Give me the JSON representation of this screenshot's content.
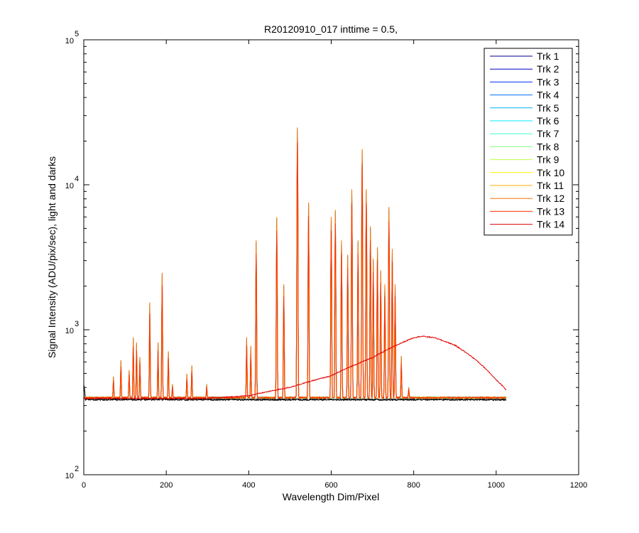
{
  "chart_data": {
    "type": "line",
    "title": "R20120910_017 inttime = 0.5,",
    "xlabel": "Wavelength Dim/Pixel",
    "ylabel": "Signal Intensity (ADU/pix/sec), light and darks",
    "xlim": [
      0,
      1200
    ],
    "ylim": [
      100,
      100000
    ],
    "yscale": "log",
    "grid": false,
    "legend_position": "top-right",
    "x_ticks": [
      {
        "value": 0,
        "label": "0"
      },
      {
        "value": 200,
        "label": "200"
      },
      {
        "value": 400,
        "label": "400"
      },
      {
        "value": 600,
        "label": "600"
      },
      {
        "value": 800,
        "label": "800"
      },
      {
        "value": 1000,
        "label": "1000"
      },
      {
        "value": 1200,
        "label": "1200"
      }
    ],
    "y_ticks": [
      {
        "value": 100,
        "base": "10",
        "exponent": "2"
      },
      {
        "value": 1000,
        "base": "10",
        "exponent": "3"
      },
      {
        "value": 10000,
        "base": "10",
        "exponent": "4"
      },
      {
        "value": 100000,
        "base": "10",
        "exponent": "5"
      }
    ],
    "baseline_levels": [
      330,
      340
    ],
    "emission_peaks": [
      {
        "x": 72,
        "y": 470
      },
      {
        "x": 90,
        "y": 610
      },
      {
        "x": 110,
        "y": 520
      },
      {
        "x": 120,
        "y": 870
      },
      {
        "x": 128,
        "y": 800
      },
      {
        "x": 136,
        "y": 640
      },
      {
        "x": 160,
        "y": 1500
      },
      {
        "x": 180,
        "y": 800
      },
      {
        "x": 190,
        "y": 2400
      },
      {
        "x": 205,
        "y": 700
      },
      {
        "x": 215,
        "y": 420
      },
      {
        "x": 250,
        "y": 490
      },
      {
        "x": 262,
        "y": 560
      },
      {
        "x": 298,
        "y": 420
      },
      {
        "x": 395,
        "y": 870
      },
      {
        "x": 405,
        "y": 760
      },
      {
        "x": 418,
        "y": 4000
      },
      {
        "x": 468,
        "y": 5800
      },
      {
        "x": 485,
        "y": 2000
      },
      {
        "x": 518,
        "y": 24000
      },
      {
        "x": 545,
        "y": 7300
      },
      {
        "x": 600,
        "y": 5800
      },
      {
        "x": 610,
        "y": 6500
      },
      {
        "x": 625,
        "y": 4000
      },
      {
        "x": 640,
        "y": 3200
      },
      {
        "x": 650,
        "y": 9000
      },
      {
        "x": 665,
        "y": 4000
      },
      {
        "x": 675,
        "y": 17000
      },
      {
        "x": 685,
        "y": 9000
      },
      {
        "x": 695,
        "y": 5000
      },
      {
        "x": 702,
        "y": 3000
      },
      {
        "x": 712,
        "y": 3600
      },
      {
        "x": 720,
        "y": 2500
      },
      {
        "x": 730,
        "y": 2000
      },
      {
        "x": 740,
        "y": 6800
      },
      {
        "x": 748,
        "y": 3500
      },
      {
        "x": 755,
        "y": 2000
      },
      {
        "x": 770,
        "y": 650
      },
      {
        "x": 788,
        "y": 400
      }
    ],
    "lamp_curve": [
      {
        "x": 300,
        "y": 335
      },
      {
        "x": 400,
        "y": 350
      },
      {
        "x": 500,
        "y": 400
      },
      {
        "x": 600,
        "y": 480
      },
      {
        "x": 700,
        "y": 640
      },
      {
        "x": 750,
        "y": 760
      },
      {
        "x": 800,
        "y": 880
      },
      {
        "x": 820,
        "y": 900
      },
      {
        "x": 850,
        "y": 880
      },
      {
        "x": 900,
        "y": 780
      },
      {
        "x": 950,
        "y": 620
      },
      {
        "x": 1000,
        "y": 450
      },
      {
        "x": 1024,
        "y": 385
      }
    ],
    "series": [
      {
        "name": "Trk 1",
        "color": "#00008f"
      },
      {
        "name": "Trk 2",
        "color": "#0000c8"
      },
      {
        "name": "Trk 3",
        "color": "#0030ff"
      },
      {
        "name": "Trk 4",
        "color": "#0070ff"
      },
      {
        "name": "Trk 5",
        "color": "#00b0ff"
      },
      {
        "name": "Trk 6",
        "color": "#00e8ff"
      },
      {
        "name": "Trk 7",
        "color": "#40ffd0"
      },
      {
        "name": "Trk 8",
        "color": "#80ff80"
      },
      {
        "name": "Trk 9",
        "color": "#c0ff40"
      },
      {
        "name": "Trk 10",
        "color": "#ffef00"
      },
      {
        "name": "Trk 11",
        "color": "#ffb000"
      },
      {
        "name": "Trk 12",
        "color": "#ff7000"
      },
      {
        "name": "Trk 13",
        "color": "#ff3000"
      },
      {
        "name": "Trk 14",
        "color": "#e00000"
      }
    ]
  }
}
